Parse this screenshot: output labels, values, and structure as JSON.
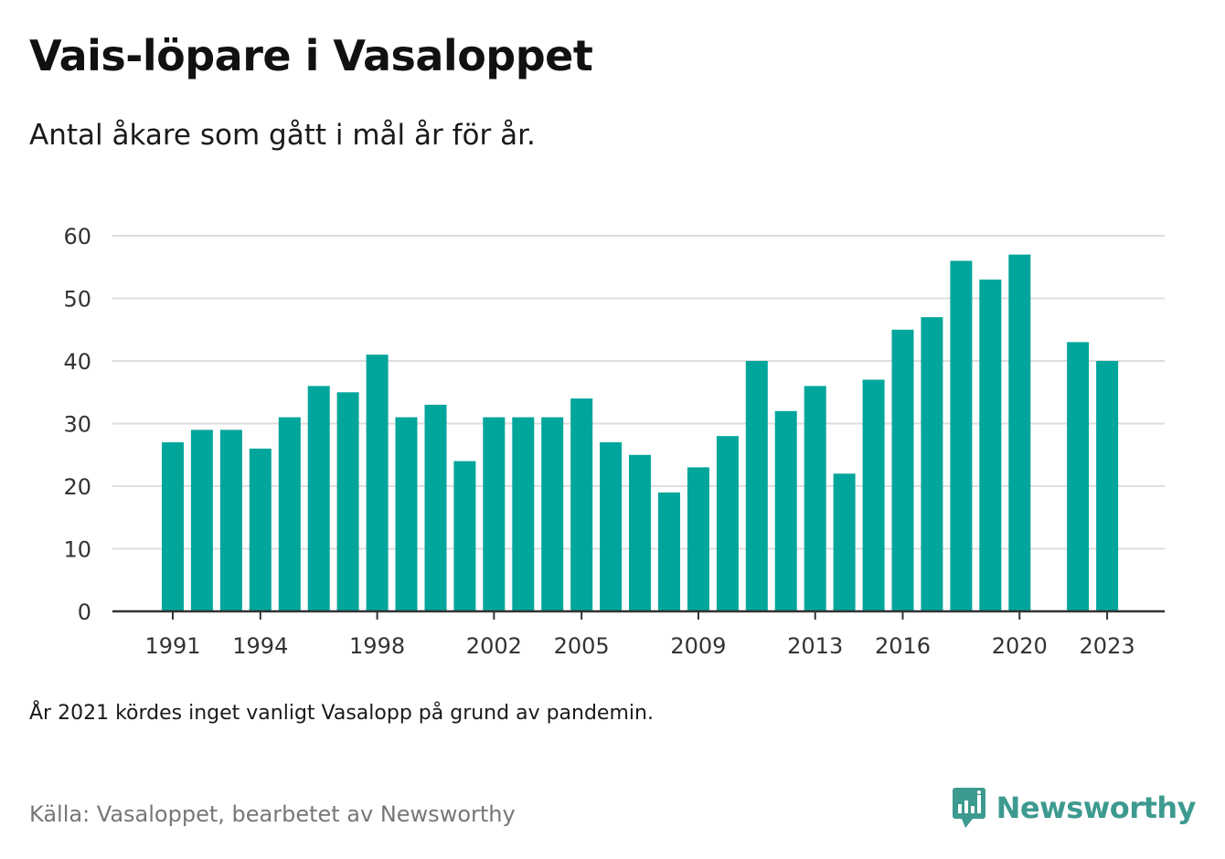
{
  "title": "Vais-löpare i Vasaloppet",
  "subtitle": "Antal åkare som gått i mål år för år.",
  "note": "År 2021 kördes inget vanligt Vasalopp på grund av pandemin.",
  "source": "Källa: Vasaloppet, bearbetet av Newsworthy",
  "logo": {
    "name": "Newsworthy",
    "icon": "newsworthy-logo-icon",
    "color": "#3d9a8f"
  },
  "colors": {
    "bar": "#00a59b",
    "grid": "#dddddd",
    "axis": "#333333"
  },
  "chart_data": {
    "type": "bar",
    "x": [
      1991,
      1992,
      1993,
      1994,
      1995,
      1996,
      1997,
      1998,
      1999,
      2000,
      2001,
      2002,
      2003,
      2004,
      2005,
      2006,
      2007,
      2008,
      2009,
      2010,
      2011,
      2012,
      2013,
      2014,
      2015,
      2016,
      2017,
      2018,
      2019,
      2020,
      2021,
      2022,
      2023
    ],
    "values": [
      27,
      29,
      29,
      26,
      31,
      36,
      35,
      41,
      31,
      33,
      24,
      31,
      31,
      31,
      34,
      27,
      25,
      19,
      23,
      28,
      40,
      32,
      36,
      22,
      37,
      45,
      47,
      56,
      53,
      57,
      null,
      43,
      40
    ],
    "xticks": [
      "1991",
      "1994",
      "1998",
      "2002",
      "2005",
      "2009",
      "2013",
      "2016",
      "2020",
      "2023"
    ],
    "yticks": [
      0,
      10,
      20,
      30,
      40,
      50,
      60
    ],
    "ylim": [
      0,
      60
    ],
    "grid": true,
    "legend": "none"
  }
}
